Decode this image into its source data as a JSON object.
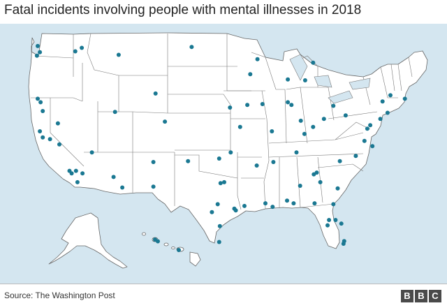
{
  "title": "Fatal incidents involving people with mental illnesses in 2018",
  "source": "Source: The Washington Post",
  "logo": [
    "B",
    "B",
    "C"
  ],
  "colors": {
    "ocean": "#d4e6f0",
    "land": "#ffffff",
    "border": "#666666",
    "marker": "#1a7892"
  },
  "incidents": [
    {
      "lon": -122.3,
      "lat": 47.6
    },
    {
      "lon": -122.7,
      "lat": 47.2
    },
    {
      "lon": -122.6,
      "lat": 48.3
    },
    {
      "lon": -117.4,
      "lat": 47.7
    },
    {
      "lon": -116.5,
      "lat": 48.1
    },
    {
      "lon": -111.4,
      "lat": 47.3
    },
    {
      "lon": -101.3,
      "lat": 48.2
    },
    {
      "lon": -93.2,
      "lat": 45.1
    },
    {
      "lon": -92.2,
      "lat": 46.8
    },
    {
      "lon": -88.0,
      "lat": 44.5
    },
    {
      "lon": -84.5,
      "lat": 46.4
    },
    {
      "lon": -85.6,
      "lat": 44.4
    },
    {
      "lon": -73.8,
      "lat": 42.7
    },
    {
      "lon": -74.9,
      "lat": 42.0
    },
    {
      "lon": -71.8,
      "lat": 42.3
    },
    {
      "lon": -122.6,
      "lat": 42.3
    },
    {
      "lon": -122.2,
      "lat": 41.9
    },
    {
      "lon": -121.9,
      "lat": 40.9
    },
    {
      "lon": -122.3,
      "lat": 38.6
    },
    {
      "lon": -121.9,
      "lat": 37.9
    },
    {
      "lon": -120.9,
      "lat": 37.7
    },
    {
      "lon": -119.6,
      "lat": 37.1
    },
    {
      "lon": -118.2,
      "lat": 34.1
    },
    {
      "lon": -117.9,
      "lat": 33.8
    },
    {
      "lon": -117.3,
      "lat": 34.1
    },
    {
      "lon": -117.1,
      "lat": 32.8
    },
    {
      "lon": -116.4,
      "lat": 33.8
    },
    {
      "lon": -119.8,
      "lat": 39.5
    },
    {
      "lon": -115.1,
      "lat": 36.2
    },
    {
      "lon": -111.9,
      "lat": 40.8
    },
    {
      "lon": -112.1,
      "lat": 33.4
    },
    {
      "lon": -110.9,
      "lat": 32.2
    },
    {
      "lon": -106.6,
      "lat": 35.1
    },
    {
      "lon": -106.6,
      "lat": 32.3
    },
    {
      "lon": -106.3,
      "lat": 42.9
    },
    {
      "lon": -105.0,
      "lat": 39.7
    },
    {
      "lon": -101.8,
      "lat": 35.2
    },
    {
      "lon": -97.5,
      "lat": 35.5
    },
    {
      "lon": -97.3,
      "lat": 32.7
    },
    {
      "lon": -96.8,
      "lat": 32.8
    },
    {
      "lon": -97.7,
      "lat": 30.3
    },
    {
      "lon": -98.5,
      "lat": 29.4
    },
    {
      "lon": -95.4,
      "lat": 29.8
    },
    {
      "lon": -95.2,
      "lat": 29.6
    },
    {
      "lon": -97.4,
      "lat": 27.8
    },
    {
      "lon": -97.5,
      "lat": 26.0
    },
    {
      "lon": -94.0,
      "lat": 30.1
    },
    {
      "lon": -96.0,
      "lat": 41.3
    },
    {
      "lon": -95.9,
      "lat": 36.2
    },
    {
      "lon": -94.6,
      "lat": 39.1
    },
    {
      "lon": -93.6,
      "lat": 41.6
    },
    {
      "lon": -91.5,
      "lat": 41.7
    },
    {
      "lon": -90.2,
      "lat": 38.6
    },
    {
      "lon": -92.3,
      "lat": 34.7
    },
    {
      "lon": -90.0,
      "lat": 35.1
    },
    {
      "lon": -90.1,
      "lat": 30.0
    },
    {
      "lon": -91.1,
      "lat": 30.4
    },
    {
      "lon": -88.0,
      "lat": 41.9
    },
    {
      "lon": -86.2,
      "lat": 39.8
    },
    {
      "lon": -85.7,
      "lat": 38.3
    },
    {
      "lon": -86.8,
      "lat": 36.2
    },
    {
      "lon": -87.5,
      "lat": 41.6
    },
    {
      "lon": -83.0,
      "lat": 40.0
    },
    {
      "lon": -84.5,
      "lat": 39.1
    },
    {
      "lon": -81.7,
      "lat": 41.5
    },
    {
      "lon": -80.0,
      "lat": 40.4
    },
    {
      "lon": -84.4,
      "lat": 33.7
    },
    {
      "lon": -84.0,
      "lat": 33.9
    },
    {
      "lon": -83.5,
      "lat": 32.8
    },
    {
      "lon": -81.1,
      "lat": 32.1
    },
    {
      "lon": -80.8,
      "lat": 35.2
    },
    {
      "lon": -78.6,
      "lat": 35.8
    },
    {
      "lon": -77.4,
      "lat": 37.5
    },
    {
      "lon": -76.3,
      "lat": 36.9
    },
    {
      "lon": -77.0,
      "lat": 38.9
    },
    {
      "lon": -76.6,
      "lat": 39.3
    },
    {
      "lon": -75.2,
      "lat": 40.0
    },
    {
      "lon": -74.2,
      "lat": 40.7
    },
    {
      "lon": -82.5,
      "lat": 27.9
    },
    {
      "lon": -82.3,
      "lat": 28.5
    },
    {
      "lon": -81.4,
      "lat": 28.5
    },
    {
      "lon": -80.6,
      "lat": 28.1
    },
    {
      "lon": -80.2,
      "lat": 26.1
    },
    {
      "lon": -80.3,
      "lat": 25.8
    },
    {
      "lon": -81.7,
      "lat": 30.3
    },
    {
      "lon": -84.3,
      "lat": 30.4
    },
    {
      "lon": -87.2,
      "lat": 30.4
    },
    {
      "lon": -86.3,
      "lat": 32.4
    },
    {
      "lon": -88.1,
      "lat": 30.7
    },
    {
      "lon": -158.0,
      "lat": 21.4
    },
    {
      "lon": -157.8,
      "lat": 21.3
    },
    {
      "lon": -156.3,
      "lat": 20.8
    }
  ]
}
